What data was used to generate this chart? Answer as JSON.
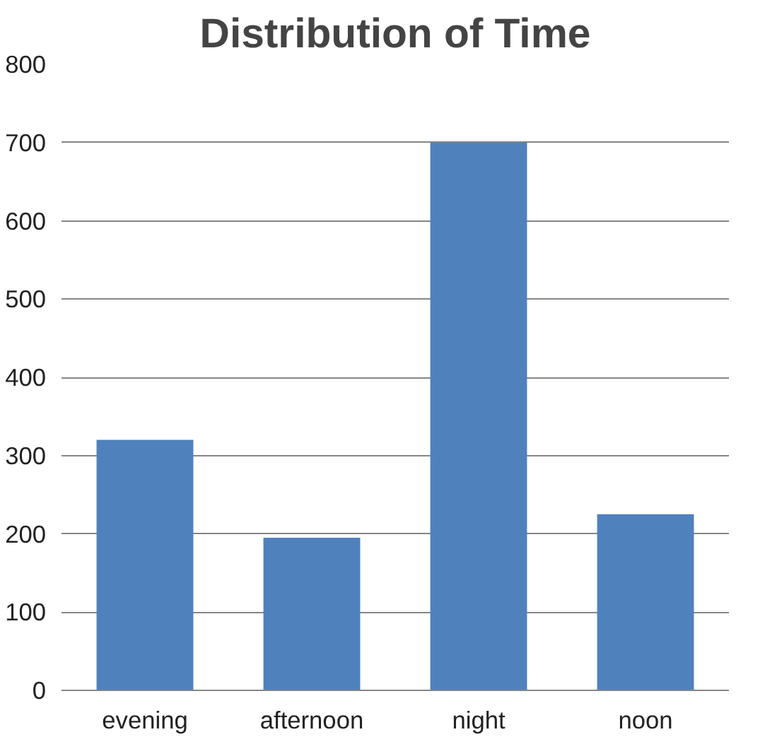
{
  "chart_data": {
    "type": "bar",
    "title": "Distribution of Time",
    "categories": [
      "evening",
      "afternoon",
      "night",
      "noon"
    ],
    "values": [
      320,
      195,
      700,
      225
    ],
    "color": "#4f81bd",
    "ylim": [
      0,
      800
    ],
    "yticks": [
      0,
      100,
      200,
      300,
      400,
      500,
      600,
      700,
      800
    ],
    "grid": "y"
  }
}
